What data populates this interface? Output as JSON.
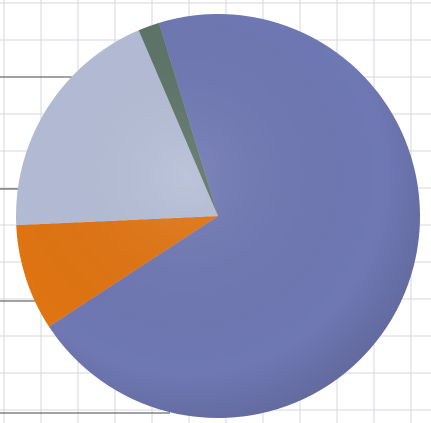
{
  "chart_data": {
    "type": "pie",
    "title": "",
    "legend": "none",
    "grid": true,
    "slices": [
      {
        "value": 70.5,
        "color": "#6f78b3"
      },
      {
        "value": 8.5,
        "color": "#e07412"
      },
      {
        "value": 19.3,
        "color": "#b4bdd6"
      },
      {
        "value": 1.7,
        "color": "#5e7468"
      }
    ],
    "colors": {
      "background": "#ffffff",
      "gridline": "#d3d7dc",
      "axisline": "#444444"
    }
  }
}
